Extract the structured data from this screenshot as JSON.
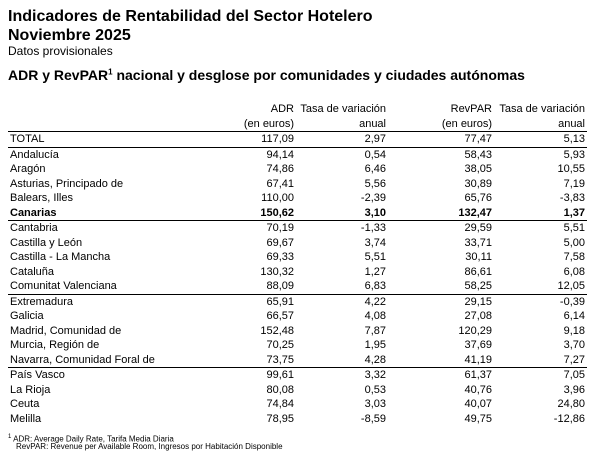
{
  "title_line1": "Indicadores de Rentabilidad del Sector Hotelero",
  "title_line2": "Noviembre 2025",
  "subtitle": "Datos provisionales",
  "heading_part1": "ADR y RevPAR",
  "heading_sup": "1",
  "heading_part2": " nacional y desglose por comunidades y ciudades autónomas",
  "columns": {
    "adr": "ADR",
    "adr_unit": "(en euros)",
    "tasa1": "Tasa de variación",
    "tasa1_sub": "anual",
    "revpar": "RevPAR",
    "revpar_unit": "(en euros)",
    "tasa2": "Tasa de variación",
    "tasa2_sub": "anual"
  },
  "rows": [
    {
      "name": "TOTAL",
      "adr": "117,09",
      "tasa_adr": "2,97",
      "revpar": "77,47",
      "tasa_revpar": "5,13"
    },
    {
      "name": "Andalucía",
      "adr": "94,14",
      "tasa_adr": "0,54",
      "revpar": "58,43",
      "tasa_revpar": "5,93"
    },
    {
      "name": "Aragón",
      "adr": "74,86",
      "tasa_adr": "6,46",
      "revpar": "38,05",
      "tasa_revpar": "10,55"
    },
    {
      "name": "Asturias, Principado de",
      "adr": "67,41",
      "tasa_adr": "5,56",
      "revpar": "30,89",
      "tasa_revpar": "7,19"
    },
    {
      "name": "Balears, Illes",
      "adr": "110,00",
      "tasa_adr": "-2,39",
      "revpar": "65,76",
      "tasa_revpar": "-3,83"
    },
    {
      "name": "Canarias",
      "adr": "150,62",
      "tasa_adr": "3,10",
      "revpar": "132,47",
      "tasa_revpar": "1,37"
    },
    {
      "name": "Cantabria",
      "adr": "70,19",
      "tasa_adr": "-1,33",
      "revpar": "29,59",
      "tasa_revpar": "5,51"
    },
    {
      "name": "Castilla y León",
      "adr": "69,67",
      "tasa_adr": "3,74",
      "revpar": "33,71",
      "tasa_revpar": "5,00"
    },
    {
      "name": "Castilla - La Mancha",
      "adr": "69,33",
      "tasa_adr": "5,51",
      "revpar": "30,11",
      "tasa_revpar": "7,58"
    },
    {
      "name": "Cataluña",
      "adr": "130,32",
      "tasa_adr": "1,27",
      "revpar": "86,61",
      "tasa_revpar": "6,08"
    },
    {
      "name": "Comunitat Valenciana",
      "adr": "88,09",
      "tasa_adr": "6,83",
      "revpar": "58,25",
      "tasa_revpar": "12,05"
    },
    {
      "name": "Extremadura",
      "adr": "65,91",
      "tasa_adr": "4,22",
      "revpar": "29,15",
      "tasa_revpar": "-0,39"
    },
    {
      "name": "Galicia",
      "adr": "66,57",
      "tasa_adr": "4,08",
      "revpar": "27,08",
      "tasa_revpar": "6,14"
    },
    {
      "name": "Madrid, Comunidad de",
      "adr": "152,48",
      "tasa_adr": "7,87",
      "revpar": "120,29",
      "tasa_revpar": "9,18"
    },
    {
      "name": "Murcia, Región de",
      "adr": "70,25",
      "tasa_adr": "1,95",
      "revpar": "37,69",
      "tasa_revpar": "3,70"
    },
    {
      "name": "Navarra, Comunidad Foral de",
      "adr": "73,75",
      "tasa_adr": "4,28",
      "revpar": "41,19",
      "tasa_revpar": "7,27"
    },
    {
      "name": "País Vasco",
      "adr": "99,61",
      "tasa_adr": "3,32",
      "revpar": "61,37",
      "tasa_revpar": "7,05"
    },
    {
      "name": "La Rioja",
      "adr": "80,08",
      "tasa_adr": "0,53",
      "revpar": "40,76",
      "tasa_revpar": "3,96"
    },
    {
      "name": "Ceuta",
      "adr": "74,84",
      "tasa_adr": "3,03",
      "revpar": "40,07",
      "tasa_revpar": "24,80"
    },
    {
      "name": "Melilla",
      "adr": "78,95",
      "tasa_adr": "-8,59",
      "revpar": "49,75",
      "tasa_revpar": "-12,86"
    }
  ],
  "footnote_sup": "1",
  "footnote_line1": "ADR: Average Daily Rate, Tarifa Media Diaria",
  "footnote_line2": "RevPAR: Revenue per Available Room, Ingresos por Habitación Disponible"
}
